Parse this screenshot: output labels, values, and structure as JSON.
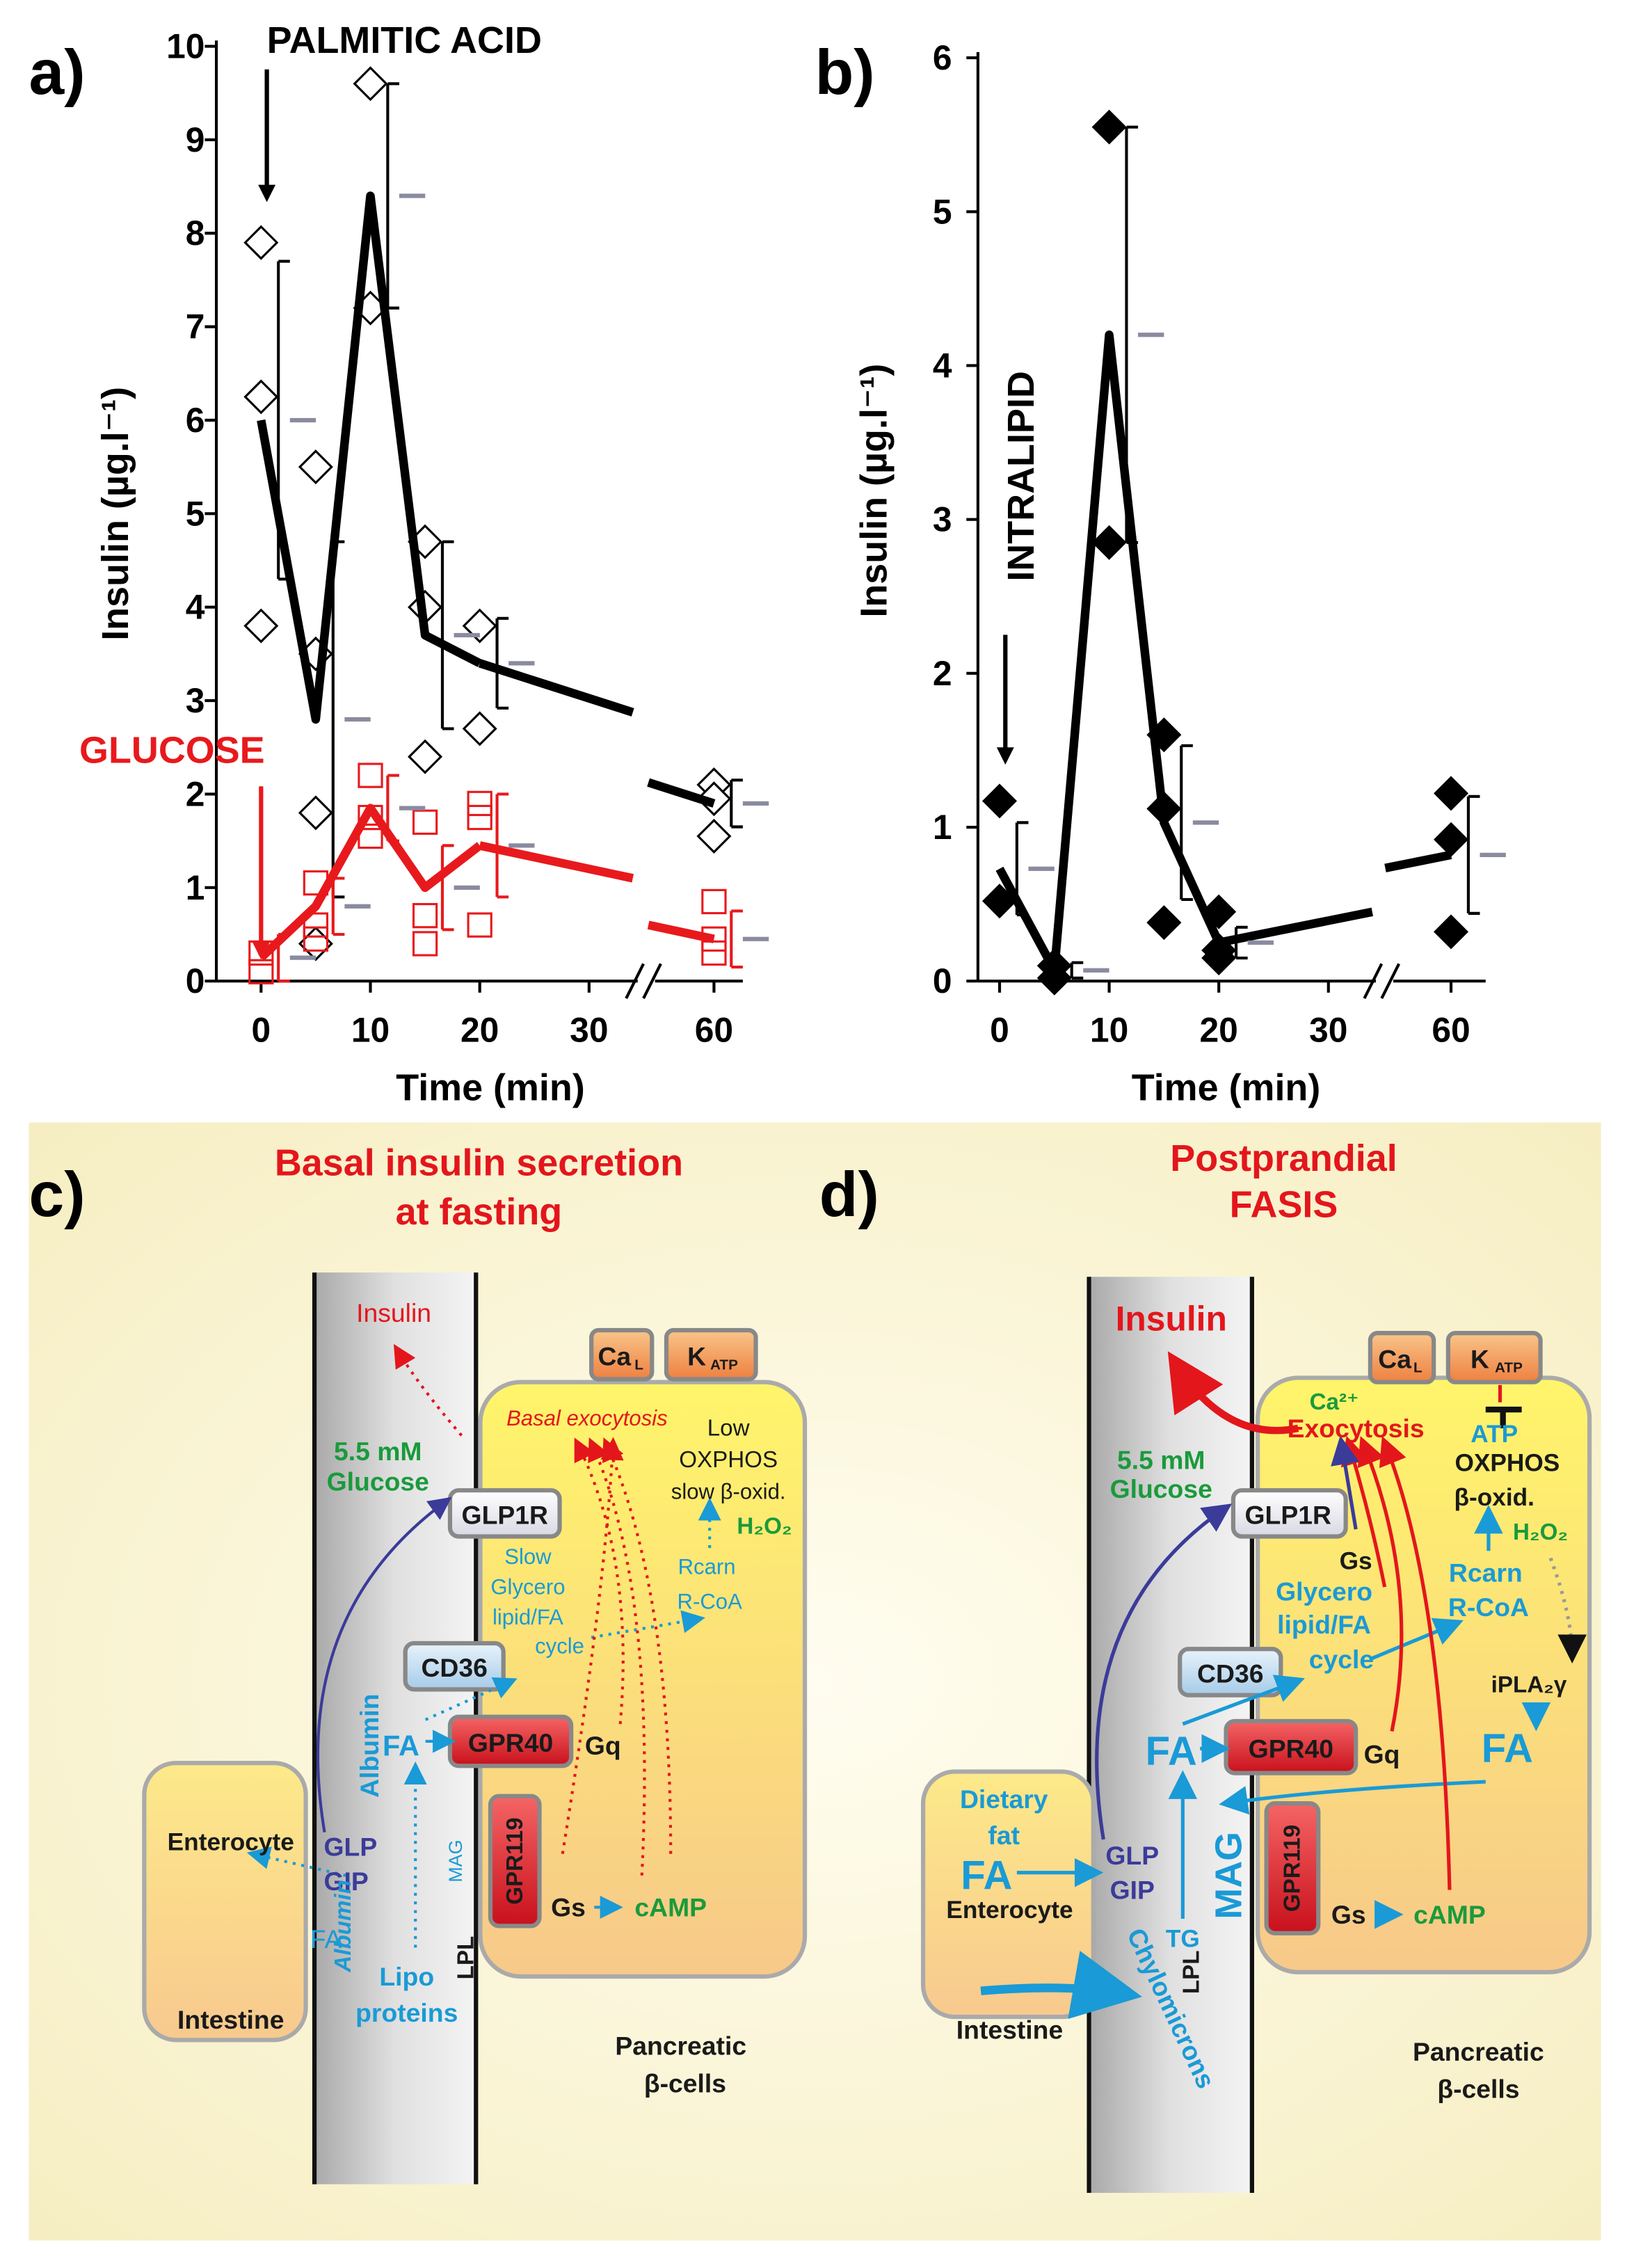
{
  "chart_data": [
    {
      "type": "line",
      "panel": "a)",
      "x_label": "Time (min)",
      "y_label": "Insulin (µg.l⁻¹)",
      "xticks": [
        0,
        10,
        20,
        30,
        60
      ],
      "ylim": [
        0,
        10
      ],
      "yticks": [
        0,
        1,
        2,
        3,
        4,
        5,
        6,
        7,
        8,
        9,
        10
      ],
      "x": [
        0,
        5,
        10,
        15,
        20,
        60
      ],
      "series": [
        {
          "name": "PALMITIC ACID",
          "color": "#000000",
          "marker": "open-diamond",
          "values": [
            6.0,
            2.8,
            8.4,
            3.7,
            3.4,
            1.9
          ],
          "errors": [
            1.7,
            1.9,
            1.2,
            1.0,
            0.48,
            0.25
          ],
          "points_x": [
            0,
            0,
            0,
            5,
            5,
            5,
            5,
            10,
            10,
            15,
            15,
            15,
            20,
            20,
            60,
            60,
            60
          ],
          "points_y": [
            7.9,
            6.25,
            3.8,
            5.5,
            3.5,
            1.8,
            0.4,
            9.6,
            7.2,
            4.7,
            4.0,
            2.4,
            3.8,
            2.7,
            2.1,
            1.95,
            1.55
          ]
        },
        {
          "name": "GLUCOSE",
          "color": "#e8191c",
          "marker": "open-square",
          "values": [
            0.25,
            0.8,
            1.85,
            1.0,
            1.45,
            0.45
          ],
          "errors": [
            0.25,
            0.3,
            0.35,
            0.45,
            0.55,
            0.3
          ],
          "points_x": [
            0,
            0,
            5,
            5,
            5,
            10,
            10,
            10,
            15,
            15,
            15,
            20,
            20,
            20,
            60,
            60,
            60
          ],
          "points_y": [
            0.3,
            0.1,
            1.05,
            0.6,
            0.45,
            2.2,
            1.75,
            1.55,
            1.7,
            0.7,
            0.4,
            1.9,
            1.75,
            0.6,
            0.85,
            0.45,
            0.3
          ]
        }
      ]
    },
    {
      "type": "line",
      "panel": "b)",
      "x_label": "Time (min)",
      "y_label": "Insulin (µg.l⁻¹)",
      "xticks": [
        0,
        10,
        20,
        30,
        60
      ],
      "ylim": [
        0,
        6
      ],
      "yticks": [
        0,
        1,
        2,
        3,
        4,
        5,
        6
      ],
      "x": [
        0,
        5,
        10,
        15,
        20,
        60
      ],
      "series": [
        {
          "name": "INTRALIPID",
          "color": "#000000",
          "marker": "filled-diamond",
          "values": [
            0.73,
            0.07,
            4.2,
            1.03,
            0.25,
            0.82
          ],
          "errors": [
            0.3,
            0.05,
            1.35,
            0.5,
            0.1,
            0.38
          ],
          "points_x": [
            0,
            0,
            5,
            5,
            10,
            10,
            15,
            15,
            15,
            20,
            20,
            20,
            60,
            60,
            60
          ],
          "points_y": [
            1.17,
            0.52,
            0.02,
            0.1,
            5.55,
            2.85,
            1.6,
            1.12,
            0.38,
            0.45,
            0.15,
            0.2,
            1.22,
            0.92,
            0.32
          ]
        }
      ]
    }
  ],
  "diagrams": [
    {
      "panel": "c)",
      "title": [
        "Basal insulin secretion",
        "at fasting"
      ],
      "labels": [
        "Insulin",
        "Basal exocytosis",
        "Low",
        "OXPHOS",
        "slow β-oxid.",
        "H₂O₂",
        "5.5 mM",
        "Glucose",
        "GLP1R",
        "Slow",
        "Glycero",
        "lipid/FA",
        "cycle",
        "Rcarn",
        "R-CoA",
        "CD36",
        "Ca",
        "L",
        "K",
        "ATP",
        "FA",
        "GPR40",
        "Gq",
        "Albumin",
        "GPR119",
        "Gs",
        "cAMP",
        "Enterocyte",
        "GLP",
        "GIP",
        "FA",
        "Albumin",
        "MAG",
        "LPL",
        "Lipo",
        "proteins",
        "Intestine",
        "Pancreatic",
        "β-cells"
      ]
    },
    {
      "panel": "d)",
      "title": [
        "Postprandial",
        "FASIS"
      ],
      "labels": [
        "Insulin",
        "Ca²⁺",
        "Exocytosis",
        "ATP",
        "OXPHOS",
        "β-oxid.",
        "H₂O₂",
        "5.5 mM",
        "Glucose",
        "GLP1R",
        "Gs",
        "Glycero",
        "lipid/FA",
        "cycle",
        "Rcarn",
        "R-CoA",
        "iPLA₂γ",
        "CD36",
        "FA",
        "GPR40",
        "Gq",
        "FA",
        "Ca",
        "L",
        "K",
        "ATP",
        "Dietary",
        "fat",
        "FA",
        "Enterocyte",
        "GLP",
        "GIP",
        "MAG",
        "TG",
        "LPL",
        "Chylomicrons",
        "GPR119",
        "Gs",
        "cAMP",
        "Intestine",
        "Pancreatic",
        "β-cells"
      ]
    }
  ]
}
